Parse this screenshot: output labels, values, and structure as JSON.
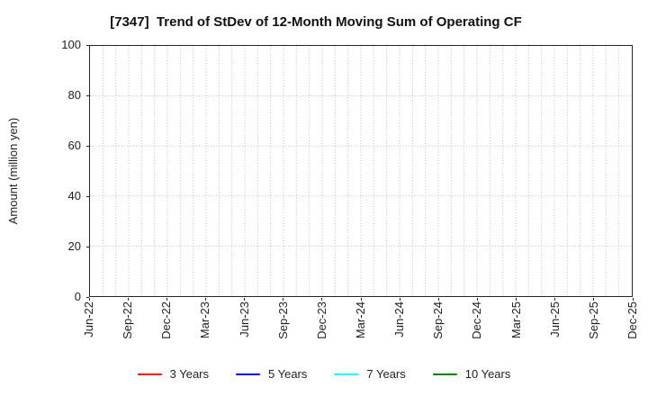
{
  "chart_data": {
    "type": "line",
    "title": "[7347]  Trend of StDev of 12-Month Moving Sum of Operating CF",
    "xlabel": "",
    "ylabel": "Amount (million yen)",
    "ylim": [
      0,
      100
    ],
    "y_ticks": [
      0,
      20,
      40,
      60,
      80,
      100
    ],
    "x_tick_labels": [
      "Jun-22",
      "Sep-22",
      "Dec-22",
      "Mar-23",
      "Jun-23",
      "Sep-23",
      "Dec-23",
      "Mar-24",
      "Jun-24",
      "Sep-24",
      "Dec-24",
      "Mar-25",
      "Jun-25",
      "Sep-25",
      "Dec-25"
    ],
    "x_months_total": 42,
    "months_per_labeled_tick": 3,
    "grid": true,
    "grid_style": "dotted",
    "grid_color": "#bdbdbd",
    "axis_color": "#262626",
    "legend_position": "bottom",
    "series": [
      {
        "name": "3 Years",
        "color": "#ff0000",
        "values": []
      },
      {
        "name": "5 Years",
        "color": "#0000ee",
        "values": []
      },
      {
        "name": "7 Years",
        "color": "#00ffff",
        "values": []
      },
      {
        "name": "10 Years",
        "color": "#008000",
        "values": []
      }
    ]
  }
}
